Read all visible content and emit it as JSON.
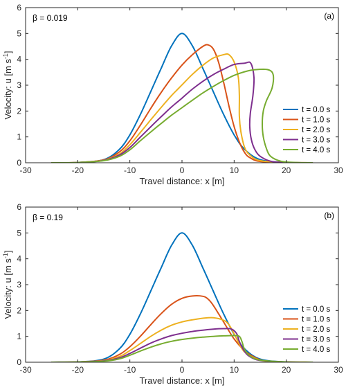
{
  "colors": [
    "#0072BD",
    "#D95319",
    "#EDB120",
    "#7E2F8E",
    "#77AC30"
  ],
  "chart_data": [
    {
      "type": "line",
      "panel_label": "(a)",
      "annotation": "β = 0.019",
      "xlabel": "Travel distance: x [m]",
      "ylabel_main": "Velocity: u [m s",
      "ylabel_sup": "-1",
      "ylabel_end": "]",
      "xlim": [
        -30,
        30
      ],
      "ylim": [
        0,
        6
      ],
      "xticks": [
        "-30",
        "-20",
        "-10",
        "0",
        "10",
        "20",
        "30"
      ],
      "yticks": [
        "0",
        "1",
        "2",
        "3",
        "4",
        "5",
        "6"
      ],
      "legend_position": "right",
      "series": [
        {
          "name": "t = 0.0 s",
          "points": [
            [
              -25,
              0
            ],
            [
              -20,
              0.01
            ],
            [
              -15,
              0.12
            ],
            [
              -12,
              0.52
            ],
            [
              -10,
              1.08
            ],
            [
              -8,
              1.86
            ],
            [
              -6,
              2.75
            ],
            [
              -4,
              3.65
            ],
            [
              -2,
              4.52
            ],
            [
              0,
              5.0
            ],
            [
              2,
              4.52
            ],
            [
              4,
              3.65
            ],
            [
              6,
              2.75
            ],
            [
              8,
              1.86
            ],
            [
              10,
              1.08
            ],
            [
              12,
              0.52
            ],
            [
              15,
              0.12
            ],
            [
              20,
              0.01
            ],
            [
              25,
              0
            ]
          ]
        },
        {
          "name": "t = 1.0 s",
          "points": [
            [
              -25,
              0
            ],
            [
              -20,
              0.01
            ],
            [
              -15,
              0.11
            ],
            [
              -12,
              0.42
            ],
            [
              -10,
              0.85
            ],
            [
              -8,
              1.45
            ],
            [
              -6,
              2.1
            ],
            [
              -4,
              2.72
            ],
            [
              -2,
              3.28
            ],
            [
              0,
              3.78
            ],
            [
              2,
              4.18
            ],
            [
              4,
              4.5
            ],
            [
              5,
              4.56
            ],
            [
              6,
              4.4
            ],
            [
              7,
              3.9
            ],
            [
              8,
              3.1
            ],
            [
              9,
              2.2
            ],
            [
              10,
              1.4
            ],
            [
              11,
              0.8
            ],
            [
              12,
              0.4
            ],
            [
              13,
              0.2
            ],
            [
              15,
              0.05
            ],
            [
              20,
              0.01
            ],
            [
              25,
              0
            ]
          ]
        },
        {
          "name": "t = 2.0 s",
          "points": [
            [
              -25,
              0
            ],
            [
              -20,
              0.01
            ],
            [
              -15,
              0.1
            ],
            [
              -12,
              0.34
            ],
            [
              -10,
              0.7
            ],
            [
              -8,
              1.17
            ],
            [
              -6,
              1.66
            ],
            [
              -4,
              2.14
            ],
            [
              -2,
              2.6
            ],
            [
              0,
              3.01
            ],
            [
              2,
              3.42
            ],
            [
              4,
              3.77
            ],
            [
              6,
              4.05
            ],
            [
              8,
              4.18
            ],
            [
              9,
              4.18
            ],
            [
              10,
              3.9
            ],
            [
              10.8,
              3.3
            ],
            [
              11,
              2.6
            ],
            [
              11,
              1.8
            ],
            [
              11.3,
              1.2
            ],
            [
              12,
              0.6
            ],
            [
              13,
              0.3
            ],
            [
              15,
              0.08
            ],
            [
              20,
              0.01
            ],
            [
              25,
              0
            ]
          ]
        },
        {
          "name": "t = 3.0 s",
          "points": [
            [
              -25,
              0
            ],
            [
              -20,
              0.01
            ],
            [
              -15,
              0.09
            ],
            [
              -12,
              0.3
            ],
            [
              -10,
              0.59
            ],
            [
              -8,
              0.99
            ],
            [
              -6,
              1.39
            ],
            [
              -4,
              1.78
            ],
            [
              -2,
              2.16
            ],
            [
              0,
              2.5
            ],
            [
              2,
              2.85
            ],
            [
              4,
              3.15
            ],
            [
              6,
              3.41
            ],
            [
              8,
              3.62
            ],
            [
              10,
              3.8
            ],
            [
              12,
              3.85
            ],
            [
              13.2,
              3.85
            ],
            [
              13.8,
              3.3
            ],
            [
              13.6,
              2.6
            ],
            [
              13.1,
              1.9
            ],
            [
              13,
              1.4
            ],
            [
              13.3,
              0.9
            ],
            [
              14,
              0.5
            ],
            [
              15,
              0.25
            ],
            [
              17,
              0.06
            ],
            [
              20,
              0.01
            ],
            [
              25,
              0
            ]
          ]
        },
        {
          "name": "t = 4.0 s",
          "points": [
            [
              -25,
              0
            ],
            [
              -20,
              0.01
            ],
            [
              -15,
              0.08
            ],
            [
              -12,
              0.25
            ],
            [
              -10,
              0.5
            ],
            [
              -8,
              0.85
            ],
            [
              -6,
              1.19
            ],
            [
              -4,
              1.52
            ],
            [
              -2,
              1.84
            ],
            [
              0,
              2.13
            ],
            [
              2,
              2.42
            ],
            [
              4,
              2.7
            ],
            [
              6,
              2.95
            ],
            [
              8,
              3.18
            ],
            [
              10,
              3.38
            ],
            [
              12,
              3.52
            ],
            [
              14,
              3.6
            ],
            [
              16.5,
              3.6
            ],
            [
              17.5,
              3.4
            ],
            [
              17.3,
              2.9
            ],
            [
              16.2,
              2.4
            ],
            [
              15.6,
              2.0
            ],
            [
              15.4,
              1.5
            ],
            [
              15.6,
              1.0
            ],
            [
              16.2,
              0.55
            ],
            [
              17,
              0.25
            ],
            [
              19,
              0.06
            ],
            [
              22,
              0.01
            ],
            [
              25,
              0
            ]
          ]
        }
      ]
    },
    {
      "type": "line",
      "panel_label": "(b)",
      "annotation": "β = 0.19",
      "xlabel": "Travel distance: x [m]",
      "ylabel_main": "Velocity: u [m s",
      "ylabel_sup": "-1",
      "ylabel_end": "]",
      "xlim": [
        -30,
        30
      ],
      "ylim": [
        0,
        6
      ],
      "xticks": [
        "-30",
        "-20",
        "-10",
        "0",
        "10",
        "20",
        "30"
      ],
      "yticks": [
        "0",
        "1",
        "2",
        "3",
        "4",
        "5",
        "6"
      ],
      "legend_position": "right",
      "series": [
        {
          "name": "t = 0.0 s",
          "points": [
            [
              -25,
              0
            ],
            [
              -20,
              0.01
            ],
            [
              -15,
              0.12
            ],
            [
              -12,
              0.52
            ],
            [
              -10,
              1.08
            ],
            [
              -8,
              1.86
            ],
            [
              -6,
              2.75
            ],
            [
              -4,
              3.65
            ],
            [
              -2,
              4.52
            ],
            [
              0,
              5.0
            ],
            [
              2,
              4.52
            ],
            [
              4,
              3.65
            ],
            [
              6,
              2.75
            ],
            [
              8,
              1.86
            ],
            [
              10,
              1.08
            ],
            [
              12,
              0.52
            ],
            [
              15,
              0.12
            ],
            [
              20,
              0.01
            ],
            [
              25,
              0
            ]
          ]
        },
        {
          "name": "t = 1.0 s",
          "points": [
            [
              -25,
              0
            ],
            [
              -20,
              0.01
            ],
            [
              -15,
              0.08
            ],
            [
              -12,
              0.3
            ],
            [
              -10,
              0.6
            ],
            [
              -8,
              1.0
            ],
            [
              -6,
              1.45
            ],
            [
              -4,
              1.88
            ],
            [
              -2,
              2.24
            ],
            [
              0,
              2.47
            ],
            [
              2,
              2.56
            ],
            [
              4,
              2.55
            ],
            [
              5,
              2.44
            ],
            [
              6,
              2.2
            ],
            [
              8,
              1.55
            ],
            [
              10,
              0.9
            ],
            [
              12,
              0.45
            ],
            [
              14,
              0.18
            ],
            [
              16,
              0.05
            ],
            [
              20,
              0.01
            ],
            [
              25,
              0
            ]
          ]
        },
        {
          "name": "t = 2.0 s",
          "points": [
            [
              -25,
              0
            ],
            [
              -20,
              0.01
            ],
            [
              -15,
              0.06
            ],
            [
              -12,
              0.22
            ],
            [
              -10,
              0.45
            ],
            [
              -8,
              0.72
            ],
            [
              -6,
              1.0
            ],
            [
              -4,
              1.24
            ],
            [
              -2,
              1.43
            ],
            [
              0,
              1.56
            ],
            [
              2,
              1.64
            ],
            [
              4,
              1.7
            ],
            [
              6,
              1.72
            ],
            [
              8,
              1.62
            ],
            [
              9,
              1.45
            ],
            [
              10,
              1.1
            ],
            [
              11,
              0.7
            ],
            [
              12,
              0.4
            ],
            [
              14,
              0.15
            ],
            [
              16,
              0.04
            ],
            [
              20,
              0.01
            ],
            [
              25,
              0
            ]
          ]
        },
        {
          "name": "t = 3.0 s",
          "points": [
            [
              -25,
              0
            ],
            [
              -20,
              0.01
            ],
            [
              -15,
              0.05
            ],
            [
              -12,
              0.17
            ],
            [
              -10,
              0.34
            ],
            [
              -8,
              0.54
            ],
            [
              -6,
              0.74
            ],
            [
              -4,
              0.9
            ],
            [
              -2,
              1.03
            ],
            [
              0,
              1.12
            ],
            [
              2,
              1.19
            ],
            [
              4,
              1.24
            ],
            [
              6,
              1.28
            ],
            [
              8,
              1.3
            ],
            [
              9.5,
              1.28
            ],
            [
              10.5,
              1.1
            ],
            [
              11,
              0.8
            ],
            [
              12,
              0.42
            ],
            [
              13,
              0.22
            ],
            [
              15,
              0.07
            ],
            [
              20,
              0.01
            ],
            [
              25,
              0
            ]
          ]
        },
        {
          "name": "t = 4.0 s",
          "points": [
            [
              -25,
              0
            ],
            [
              -20,
              0.01
            ],
            [
              -15,
              0.04
            ],
            [
              -12,
              0.13
            ],
            [
              -10,
              0.27
            ],
            [
              -8,
              0.43
            ],
            [
              -6,
              0.58
            ],
            [
              -4,
              0.71
            ],
            [
              -2,
              0.81
            ],
            [
              0,
              0.88
            ],
            [
              2,
              0.93
            ],
            [
              4,
              0.97
            ],
            [
              6,
              1.0
            ],
            [
              8,
              1.02
            ],
            [
              10,
              1.03
            ],
            [
              11,
              1.0
            ],
            [
              11.5,
              0.8
            ],
            [
              12,
              0.5
            ],
            [
              13,
              0.25
            ],
            [
              15,
              0.08
            ],
            [
              20,
              0.01
            ],
            [
              25,
              0
            ]
          ]
        }
      ]
    }
  ]
}
